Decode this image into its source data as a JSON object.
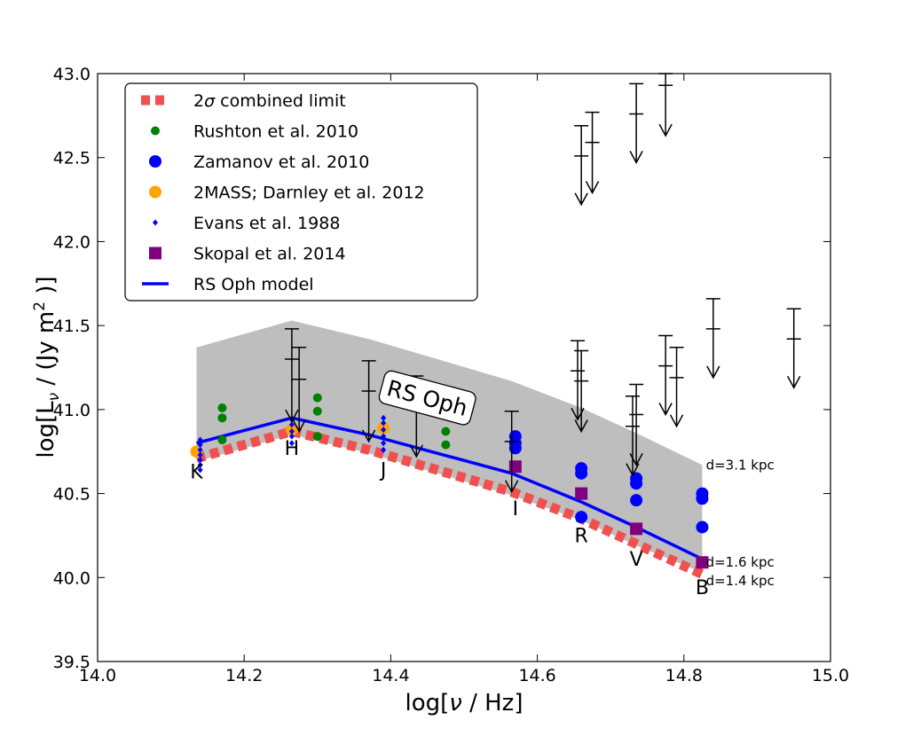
{
  "chart_data": {
    "type": "scatter",
    "xlabel": "log[ν / Hz]",
    "ylabel": "log[L_ν / (Jy m^2 )]",
    "xlim": [
      14.0,
      15.0
    ],
    "ylim": [
      39.5,
      43.0
    ],
    "xticks": [
      "14.0",
      "14.2",
      "14.4",
      "14.6",
      "14.8",
      "15.0"
    ],
    "yticks": [
      "39.5",
      "40.0",
      "40.5",
      "41.0",
      "41.5",
      "42.0",
      "42.5",
      "43.0"
    ],
    "legend_position": "upper-left",
    "legend": [
      {
        "label": "2σ combined limit",
        "marker": "dashed-band",
        "color": "#f05050"
      },
      {
        "label": "Rushton et al. 2010",
        "marker": "circle-small",
        "color": "#008000"
      },
      {
        "label": "Zamanov et al. 2010",
        "marker": "circle",
        "color": "#0000ff"
      },
      {
        "label": "2MASS; Darnley et al. 2012",
        "marker": "circle",
        "color": "#ffa500"
      },
      {
        "label": "Evans et al. 1988",
        "marker": "diamond-small",
        "color": "#0000ff"
      },
      {
        "label": "Skopal et al. 2014",
        "marker": "square",
        "color": "#800080"
      },
      {
        "label": "RS Oph model",
        "marker": "line",
        "color": "#0000ff"
      }
    ],
    "gray_band": {
      "color": "#bebebe",
      "upper": [
        [
          14.135,
          41.37
        ],
        [
          14.265,
          41.53
        ],
        [
          14.37,
          41.42
        ],
        [
          14.565,
          41.17
        ],
        [
          14.66,
          41.01
        ],
        [
          14.735,
          40.86
        ],
        [
          14.825,
          40.67
        ]
      ],
      "lower": [
        [
          14.135,
          40.69
        ],
        [
          14.265,
          40.85
        ],
        [
          14.37,
          40.74
        ],
        [
          14.565,
          40.49
        ],
        [
          14.66,
          40.34
        ],
        [
          14.735,
          40.19
        ],
        [
          14.825,
          40.03
        ]
      ]
    },
    "combined_limit_line": {
      "color": "#f05050",
      "points": [
        [
          14.135,
          40.71
        ],
        [
          14.265,
          40.87
        ],
        [
          14.37,
          40.76
        ],
        [
          14.565,
          40.51
        ],
        [
          14.66,
          40.35
        ],
        [
          14.735,
          40.2
        ],
        [
          14.825,
          40.02
        ]
      ]
    },
    "model_line": {
      "color": "#0000ff",
      "points": [
        [
          14.135,
          40.8
        ],
        [
          14.265,
          40.95
        ],
        [
          14.37,
          40.85
        ],
        [
          14.565,
          40.62
        ],
        [
          14.66,
          40.45
        ],
        [
          14.735,
          40.3
        ],
        [
          14.825,
          40.11
        ]
      ]
    },
    "series": [
      {
        "name": "Rushton et al. 2010",
        "color": "#008000",
        "marker": "circle-small",
        "points": [
          [
            14.17,
            41.01
          ],
          [
            14.17,
            40.95
          ],
          [
            14.17,
            40.82
          ],
          [
            14.3,
            41.07
          ],
          [
            14.3,
            40.99
          ],
          [
            14.3,
            40.84
          ],
          [
            14.475,
            40.87
          ],
          [
            14.475,
            40.79
          ]
        ]
      },
      {
        "name": "Zamanov et al. 2010",
        "color": "#0000ff",
        "marker": "circle",
        "points": [
          [
            14.57,
            40.84
          ],
          [
            14.57,
            40.8
          ],
          [
            14.57,
            40.77
          ],
          [
            14.66,
            40.65
          ],
          [
            14.66,
            40.62
          ],
          [
            14.66,
            40.36
          ],
          [
            14.735,
            40.59
          ],
          [
            14.735,
            40.56
          ],
          [
            14.735,
            40.46
          ],
          [
            14.825,
            40.5
          ],
          [
            14.825,
            40.47
          ],
          [
            14.825,
            40.3
          ]
        ]
      },
      {
        "name": "2MASS; Darnley et al. 2012",
        "color": "#ffa500",
        "marker": "circle",
        "points": [
          [
            14.135,
            40.75
          ],
          [
            14.265,
            40.88
          ],
          [
            14.39,
            40.89
          ]
        ]
      },
      {
        "name": "Evans et al. 1988",
        "color": "#0000ff",
        "marker": "diamond-small",
        "points": [
          [
            14.14,
            40.82
          ],
          [
            14.14,
            40.79
          ],
          [
            14.14,
            40.76
          ],
          [
            14.14,
            40.73
          ],
          [
            14.14,
            40.7
          ],
          [
            14.14,
            40.67
          ],
          [
            14.14,
            40.64
          ],
          [
            14.265,
            40.94
          ],
          [
            14.265,
            40.91
          ],
          [
            14.265,
            40.87
          ],
          [
            14.265,
            40.84
          ],
          [
            14.265,
            40.8
          ],
          [
            14.39,
            40.95
          ],
          [
            14.39,
            40.92
          ],
          [
            14.39,
            40.88
          ],
          [
            14.39,
            40.84
          ],
          [
            14.39,
            40.8
          ],
          [
            14.39,
            40.76
          ]
        ]
      },
      {
        "name": "Skopal et al. 2014",
        "color": "#800080",
        "marker": "square",
        "points": [
          [
            14.57,
            40.66
          ],
          [
            14.66,
            40.5
          ],
          [
            14.735,
            40.29
          ],
          [
            14.825,
            40.09
          ]
        ]
      }
    ],
    "upper_limits": [
      {
        "x": 14.265,
        "bars": [
          41.48,
          41.3
        ],
        "head": 40.93
      },
      {
        "x": 14.275,
        "bars": [
          41.37,
          41.18
        ],
        "head": 40.87
      },
      {
        "x": 14.37,
        "bars": [
          41.29,
          41.11
        ],
        "head": 40.81
      },
      {
        "x": 14.435,
        "bars": [
          41.2,
          41.01
        ],
        "head": 40.72
      },
      {
        "x": 14.565,
        "bars": [
          40.99,
          40.81
        ],
        "head": 40.51
      },
      {
        "x": 14.655,
        "bars": [
          41.41,
          41.23
        ],
        "head": 40.94
      },
      {
        "x": 14.66,
        "bars": [
          41.35,
          41.17
        ],
        "head": 40.87
      },
      {
        "x": 14.66,
        "bars": [
          42.69,
          42.51
        ],
        "head": 42.22
      },
      {
        "x": 14.675,
        "bars": [
          42.77,
          42.59
        ],
        "head": 42.29
      },
      {
        "x": 14.73,
        "bars": [
          41.08,
          40.9
        ],
        "head": 40.61
      },
      {
        "x": 14.735,
        "bars": [
          41.15,
          40.97
        ],
        "head": 40.67
      },
      {
        "x": 14.735,
        "bars": [
          42.94,
          42.76
        ],
        "head": 42.47
      },
      {
        "x": 14.775,
        "bars": [
          43.0,
          42.93
        ],
        "head": 42.63
      },
      {
        "x": 14.775,
        "bars": [
          41.44,
          41.26
        ],
        "head": 40.97
      },
      {
        "x": 14.79,
        "bars": [
          41.37,
          41.19
        ],
        "head": 40.9
      },
      {
        "x": 14.84,
        "bars": [
          41.66,
          41.48
        ],
        "head": 41.19
      },
      {
        "x": 14.95,
        "bars": [
          41.6,
          41.42
        ],
        "head": 41.13
      }
    ],
    "band_labels": [
      {
        "text": "K",
        "x": 14.135,
        "y": 40.59
      },
      {
        "text": "H",
        "x": 14.265,
        "y": 40.73
      },
      {
        "text": "J",
        "x": 14.39,
        "y": 40.6
      },
      {
        "text": "I",
        "x": 14.57,
        "y": 40.37
      },
      {
        "text": "R",
        "x": 14.66,
        "y": 40.21
      },
      {
        "text": "V",
        "x": 14.735,
        "y": 40.07
      },
      {
        "text": "B",
        "x": 14.825,
        "y": 39.9
      }
    ],
    "distance_labels": [
      {
        "text": "d=3.1 kpc",
        "x": 14.83,
        "y": 40.67
      },
      {
        "text": "d=1.6 kpc",
        "x": 14.83,
        "y": 40.09
      },
      {
        "text": "d=1.4 kpc",
        "x": 14.83,
        "y": 39.98
      }
    ],
    "annotation": {
      "text": "RS Oph",
      "x": 14.45,
      "y": 41.07,
      "rotation_deg": 15
    }
  }
}
